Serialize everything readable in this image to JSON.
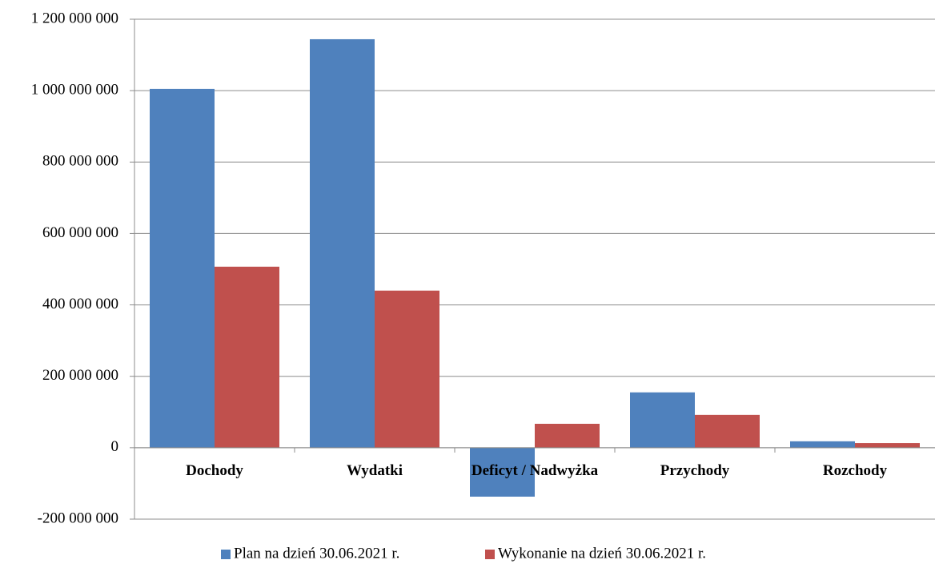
{
  "chart_data": {
    "type": "bar",
    "categories": [
      "Dochody",
      "Wydatki",
      "Deficyt / Nadwyżka",
      "Przychody",
      "Rozchody"
    ],
    "series": [
      {
        "name": "Plan na dzień 30.06.2021 r.",
        "color": "#4f81bd",
        "values": [
          1005000000,
          1144000000,
          -137000000,
          155000000,
          18000000
        ]
      },
      {
        "name": "Wykonanie na dzień 30.06.2021 r.",
        "color": "#c0504d",
        "values": [
          507000000,
          440000000,
          67000000,
          92000000,
          13000000
        ]
      }
    ],
    "ylim": [
      -200000000,
      1200000000
    ],
    "yticks": [
      {
        "value": -200000000,
        "label": "-200 000 000"
      },
      0,
      {
        "value": 200000000,
        "label": "200 000 000"
      },
      {
        "value": 400000000,
        "label": "400 000 000"
      },
      {
        "value": 600000000,
        "label": "600 000 000"
      },
      {
        "value": 800000000,
        "label": "800 000 000"
      },
      {
        "value": 1000000000,
        "label": "1 000 000 000"
      },
      {
        "value": 1200000000,
        "label": "1 200 000 000"
      }
    ],
    "grid": true,
    "legend": "bottom"
  }
}
